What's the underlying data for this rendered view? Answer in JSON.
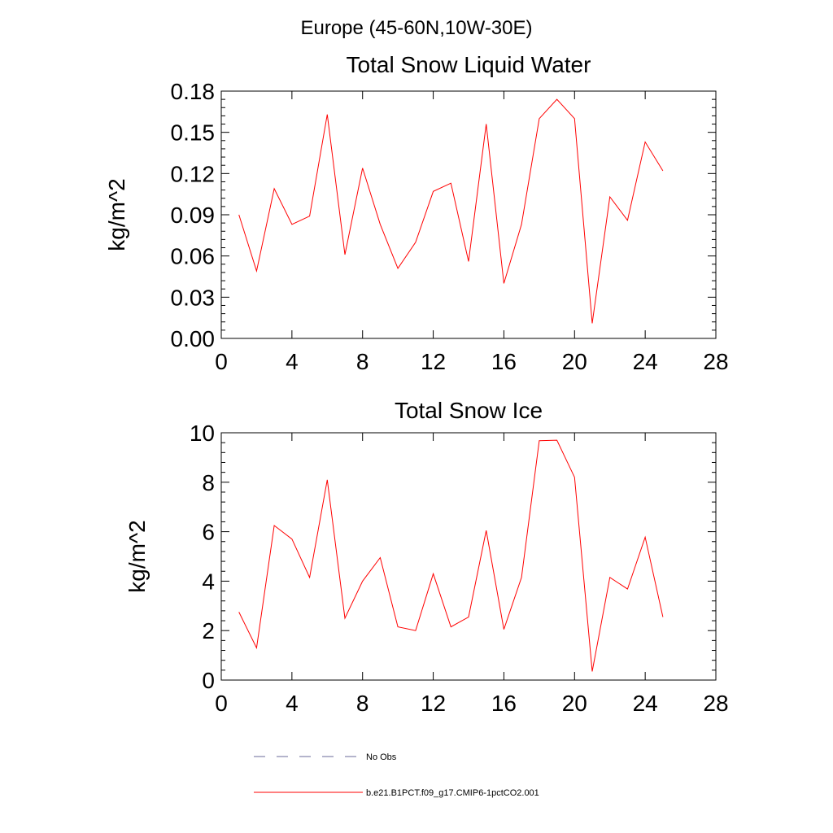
{
  "figure_title": "Europe (45-60N,10W-30E)",
  "legend": {
    "entries": [
      {
        "label": "No Obs",
        "style": "dashed",
        "color": "#6a6a9a"
      },
      {
        "label": "b.e21.B1PCT.f09_g17.CMIP6-1pctCO2.001",
        "style": "solid",
        "color": "#ff0000"
      }
    ]
  },
  "chart_data": [
    {
      "type": "line",
      "title": "Total Snow Liquid Water",
      "ylabel": "kg/m^2",
      "xlabel": "",
      "xlim": [
        0,
        28
      ],
      "ylim": [
        0,
        0.18
      ],
      "xticks": [
        "0",
        "4",
        "8",
        "12",
        "16",
        "20",
        "24",
        "28"
      ],
      "yticks": [
        "0.00",
        "0.03",
        "0.06",
        "0.09",
        "0.12",
        "0.15",
        "0.18"
      ],
      "series": [
        {
          "color": "#ff0000",
          "x": [
            1,
            2,
            3,
            4,
            5,
            6,
            7,
            8,
            9,
            10,
            11,
            12,
            13,
            14,
            15,
            16,
            17,
            18,
            19,
            20,
            21,
            22,
            23,
            24,
            25
          ],
          "values": [
            0.09,
            0.049,
            0.109,
            0.083,
            0.089,
            0.163,
            0.061,
            0.124,
            0.083,
            0.051,
            0.07,
            0.107,
            0.113,
            0.056,
            0.156,
            0.04,
            0.083,
            0.16,
            0.174,
            0.16,
            0.011,
            0.103,
            0.086,
            0.143,
            0.122
          ]
        }
      ]
    },
    {
      "type": "line",
      "title": "Total Snow Ice",
      "ylabel": "kg/m^2",
      "xlabel": "",
      "xlim": [
        0,
        28
      ],
      "ylim": [
        0,
        10
      ],
      "xticks": [
        "0",
        "4",
        "8",
        "12",
        "16",
        "20",
        "24",
        "28"
      ],
      "yticks": [
        "0",
        "2",
        "4",
        "6",
        "8",
        "10"
      ],
      "series": [
        {
          "color": "#ff0000",
          "x": [
            1,
            2,
            3,
            4,
            5,
            6,
            7,
            8,
            9,
            10,
            11,
            12,
            13,
            14,
            15,
            16,
            17,
            18,
            19,
            20,
            21,
            22,
            23,
            24,
            25
          ],
          "values": [
            2.75,
            1.3,
            6.25,
            5.7,
            4.15,
            8.1,
            2.5,
            4.0,
            4.95,
            2.15,
            2.0,
            4.3,
            2.15,
            2.55,
            6.05,
            2.05,
            4.15,
            9.68,
            9.7,
            8.2,
            0.35,
            4.15,
            3.68,
            5.78,
            2.55
          ]
        }
      ]
    }
  ]
}
